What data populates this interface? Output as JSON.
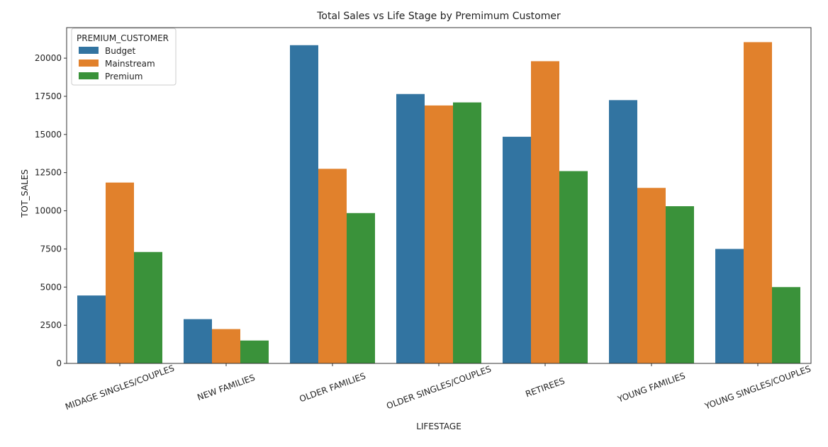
{
  "chart_data": {
    "type": "bar",
    "title": "Total Sales vs Life Stage by Premimum Customer",
    "xlabel": "LIFESTAGE",
    "ylabel": "TOT_SALES",
    "ylim": [
      0,
      22000
    ],
    "yticks": [
      0,
      2500,
      5000,
      7500,
      10000,
      12500,
      15000,
      17500,
      20000
    ],
    "grid": false,
    "legend": {
      "title": "PREMIUM_CUSTOMER",
      "placement": "top-left"
    },
    "categories": [
      "MIDAGE SINGLES/COUPLES",
      "NEW FAMILIES",
      "OLDER FAMILIES",
      "OLDER SINGLES/COUPLES",
      "RETIREES",
      "YOUNG FAMILIES",
      "YOUNG SINGLES/COUPLES"
    ],
    "series": [
      {
        "name": "Budget",
        "color": "#3274a1",
        "values": [
          4450,
          2900,
          20850,
          17650,
          14850,
          17250,
          7500
        ]
      },
      {
        "name": "Mainstream",
        "color": "#e1812c",
        "values": [
          11850,
          2250,
          12750,
          16900,
          19800,
          11500,
          21050
        ]
      },
      {
        "name": "Premium",
        "color": "#3a923a",
        "values": [
          7300,
          1500,
          9850,
          17100,
          12600,
          10300,
          5000
        ]
      }
    ]
  }
}
